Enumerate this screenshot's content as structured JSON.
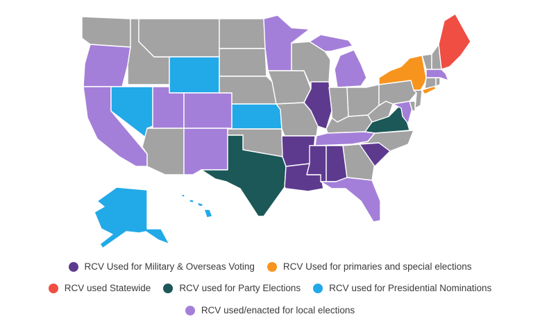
{
  "colors": {
    "none": "#a3a3a3",
    "military": "#5e3a8f",
    "primaries": "#f7941d",
    "statewide": "#f04e43",
    "party": "#1c5858",
    "presidential": "#22a9e8",
    "local": "#a47fd9"
  },
  "legend": {
    "military": {
      "label": "RCV Used for Military & Overseas Voting",
      "color": "#5e3a8f"
    },
    "primaries": {
      "label": "RCV Used for primaries and special elections",
      "color": "#f7941d"
    },
    "statewide": {
      "label": "RCV used Statewide",
      "color": "#f04e43"
    },
    "party": {
      "label": "RCV used for Party Elections",
      "color": "#1c5858"
    },
    "presidential": {
      "label": "RCV used for Presidential Nominations",
      "color": "#22a9e8"
    },
    "local": {
      "label": "RCV used/enacted for local elections",
      "color": "#a47fd9"
    }
  },
  "states": {
    "WA": "none",
    "OR": "local",
    "CA": "local",
    "NV": "presidential",
    "ID": "none",
    "MT": "none",
    "WY": "presidential",
    "UT": "local",
    "CO": "local",
    "AZ": "none",
    "NM": "local",
    "ND": "none",
    "SD": "none",
    "NE": "none",
    "KS": "presidential",
    "OK": "none",
    "TX": "party",
    "MN": "local",
    "IA": "none",
    "MO": "none",
    "AR": "military",
    "LA": "military",
    "WI": "none",
    "IL": "military",
    "MI": "local",
    "IN": "none",
    "OH": "none",
    "KY": "none",
    "TN": "local",
    "MS": "military",
    "AL": "military",
    "GA": "none",
    "FL": "local",
    "SC": "military",
    "NC": "none",
    "VA": "party",
    "WV": "none",
    "PA": "none",
    "NY": "primaries",
    "VT": "none",
    "NH": "none",
    "ME": "statewide",
    "MA": "local",
    "RI": "none",
    "CT": "none",
    "NJ": "none",
    "DE": "none",
    "MD": "local",
    "AK": "presidential",
    "HI": "presidential"
  }
}
